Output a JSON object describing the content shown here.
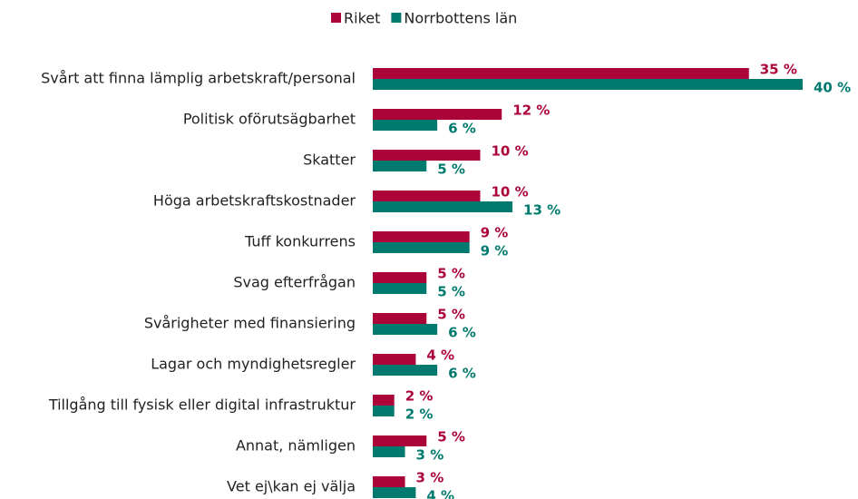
{
  "chart_data": {
    "type": "bar",
    "orientation": "horizontal",
    "categories": [
      "Svårt att finna lämplig arbetskraft/personal",
      "Politisk oförutsägbarhet",
      "Skatter",
      "Höga arbetskraftskostnader",
      "Tuff konkurrens",
      "Svag efterfrågan",
      "Svårigheter med finansiering",
      "Lagar och myndighetsregler",
      "Tillgång till fysisk eller digital infrastruktur",
      "Annat, nämligen",
      "Vet ej\\kan ej välja"
    ],
    "series": [
      {
        "name": "Riket",
        "color": "#ab0439",
        "values": [
          35,
          12,
          10,
          10,
          9,
          5,
          5,
          4,
          2,
          5,
          3
        ],
        "value_labels": [
          "35 %",
          "12 %",
          "10 %",
          "10 %",
          "9 %",
          "5 %",
          "5 %",
          "4 %",
          "2 %",
          "5 %",
          "3 %"
        ]
      },
      {
        "name": "Norrbottens län",
        "color": "#007a6e",
        "values": [
          40,
          6,
          5,
          13,
          9,
          5,
          6,
          6,
          2,
          3,
          4
        ],
        "value_labels": [
          "40 %",
          "6 %",
          "5 %",
          "13 %",
          "9 %",
          "5 %",
          "6 %",
          "6 %",
          "2 %",
          "3 %",
          "4 %"
        ]
      }
    ],
    "xlim": [
      0,
      40
    ],
    "legend": "top"
  }
}
